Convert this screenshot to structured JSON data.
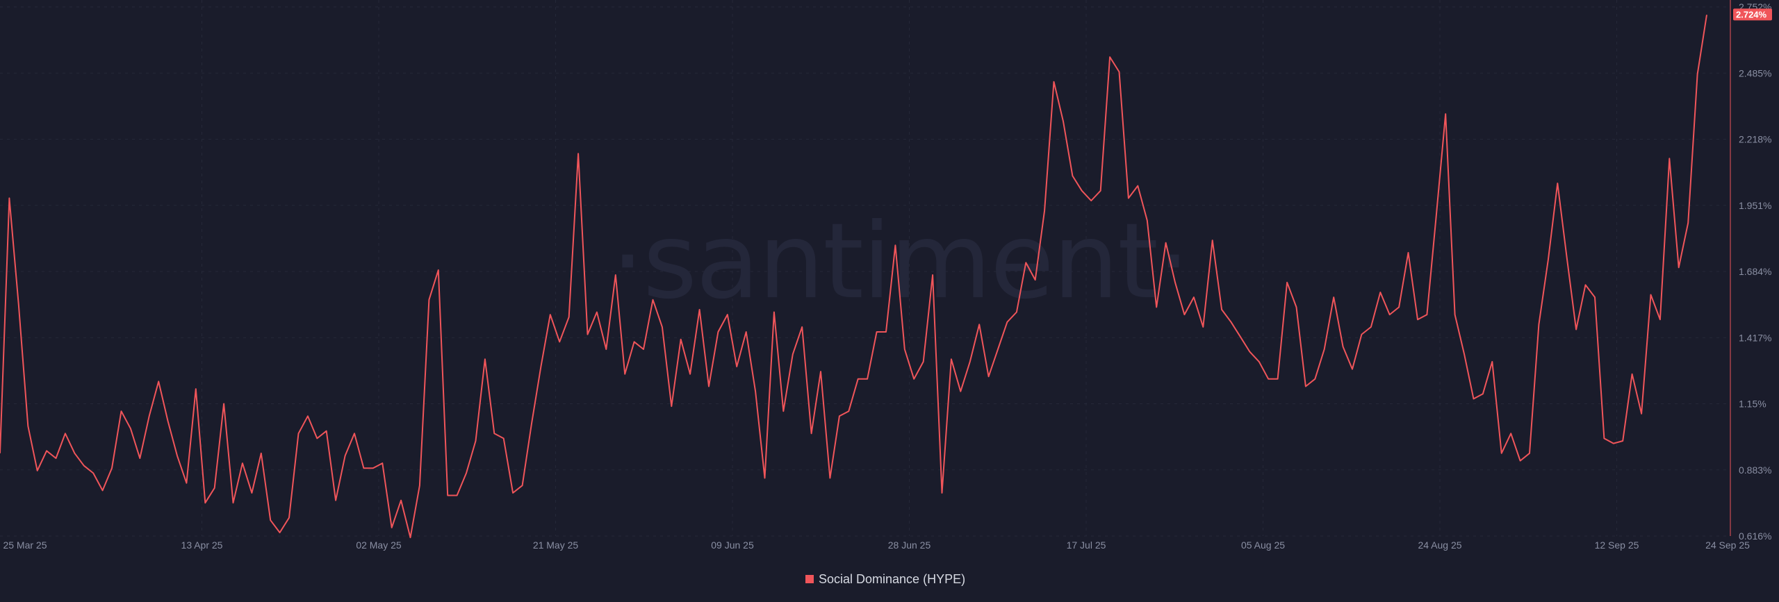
{
  "watermark": "·santiment·",
  "legend": {
    "label": "Social Dominance (HYPE)"
  },
  "colors": {
    "background": "#1a1c2b",
    "series": "#f0555a",
    "grid": "#252838",
    "axis_text": "#8a8fa3"
  },
  "chart_data": {
    "type": "line",
    "x_tick_labels": [
      "25 Mar 25",
      "13 Apr 25",
      "02 May 25",
      "21 May 25",
      "09 Jun 25",
      "28 Jun 25",
      "17 Jul 25",
      "05 Aug 25",
      "24 Aug 25",
      "12 Sep 25",
      "24 Sep 25"
    ],
    "y_tick_labels": [
      "0.616%",
      "0.883%",
      "1.15%",
      "1.417%",
      "1.684%",
      "1.951%",
      "2.218%",
      "2.485%",
      "2.752%"
    ],
    "ylim": [
      0.616,
      2.752
    ],
    "grid": true,
    "legend_position": "bottom-center",
    "last_value_label": "2.724%",
    "series": [
      {
        "name": "Social Dominance (HYPE)",
        "values": [
          0.95,
          1.98,
          1.55,
          1.06,
          0.88,
          0.96,
          0.93,
          1.03,
          0.95,
          0.9,
          0.87,
          0.8,
          0.89,
          1.12,
          1.05,
          0.93,
          1.1,
          1.24,
          1.08,
          0.94,
          0.83,
          1.21,
          0.75,
          0.81,
          1.15,
          0.75,
          0.91,
          0.79,
          0.95,
          0.68,
          0.63,
          0.69,
          1.03,
          1.1,
          1.01,
          1.04,
          0.76,
          0.94,
          1.03,
          0.89,
          0.89,
          0.91,
          0.65,
          0.76,
          0.61,
          0.82,
          1.57,
          1.69,
          0.78,
          0.78,
          0.87,
          1.0,
          1.33,
          1.03,
          1.01,
          0.79,
          0.82,
          1.07,
          1.3,
          1.51,
          1.4,
          1.5,
          2.16,
          1.43,
          1.52,
          1.37,
          1.67,
          1.27,
          1.4,
          1.37,
          1.57,
          1.46,
          1.14,
          1.41,
          1.27,
          1.53,
          1.22,
          1.44,
          1.51,
          1.3,
          1.44,
          1.2,
          0.85,
          1.52,
          1.12,
          1.35,
          1.46,
          1.03,
          1.28,
          0.85,
          1.1,
          1.12,
          1.25,
          1.25,
          1.44,
          1.44,
          1.79,
          1.37,
          1.25,
          1.32,
          1.67,
          0.79,
          1.33,
          1.2,
          1.32,
          1.47,
          1.26,
          1.37,
          1.48,
          1.52,
          1.72,
          1.65,
          1.93,
          2.45,
          2.29,
          2.07,
          2.01,
          1.97,
          2.01,
          2.55,
          2.49,
          1.98,
          2.03,
          1.89,
          1.54,
          1.8,
          1.64,
          1.51,
          1.58,
          1.46,
          1.81,
          1.53,
          1.48,
          1.42,
          1.36,
          1.32,
          1.25,
          1.25,
          1.64,
          1.54,
          1.22,
          1.25,
          1.37,
          1.58,
          1.38,
          1.29,
          1.43,
          1.46,
          1.6,
          1.51,
          1.54,
          1.76,
          1.49,
          1.51,
          1.91,
          2.32,
          1.51,
          1.35,
          1.17,
          1.19,
          1.32,
          0.95,
          1.03,
          0.92,
          0.95,
          1.47,
          1.73,
          2.04,
          1.74,
          1.45,
          1.63,
          1.58,
          1.01,
          0.99,
          1.0,
          1.27,
          1.11,
          1.59,
          1.49,
          2.14,
          1.7,
          1.88,
          2.48,
          2.72
        ]
      }
    ]
  }
}
